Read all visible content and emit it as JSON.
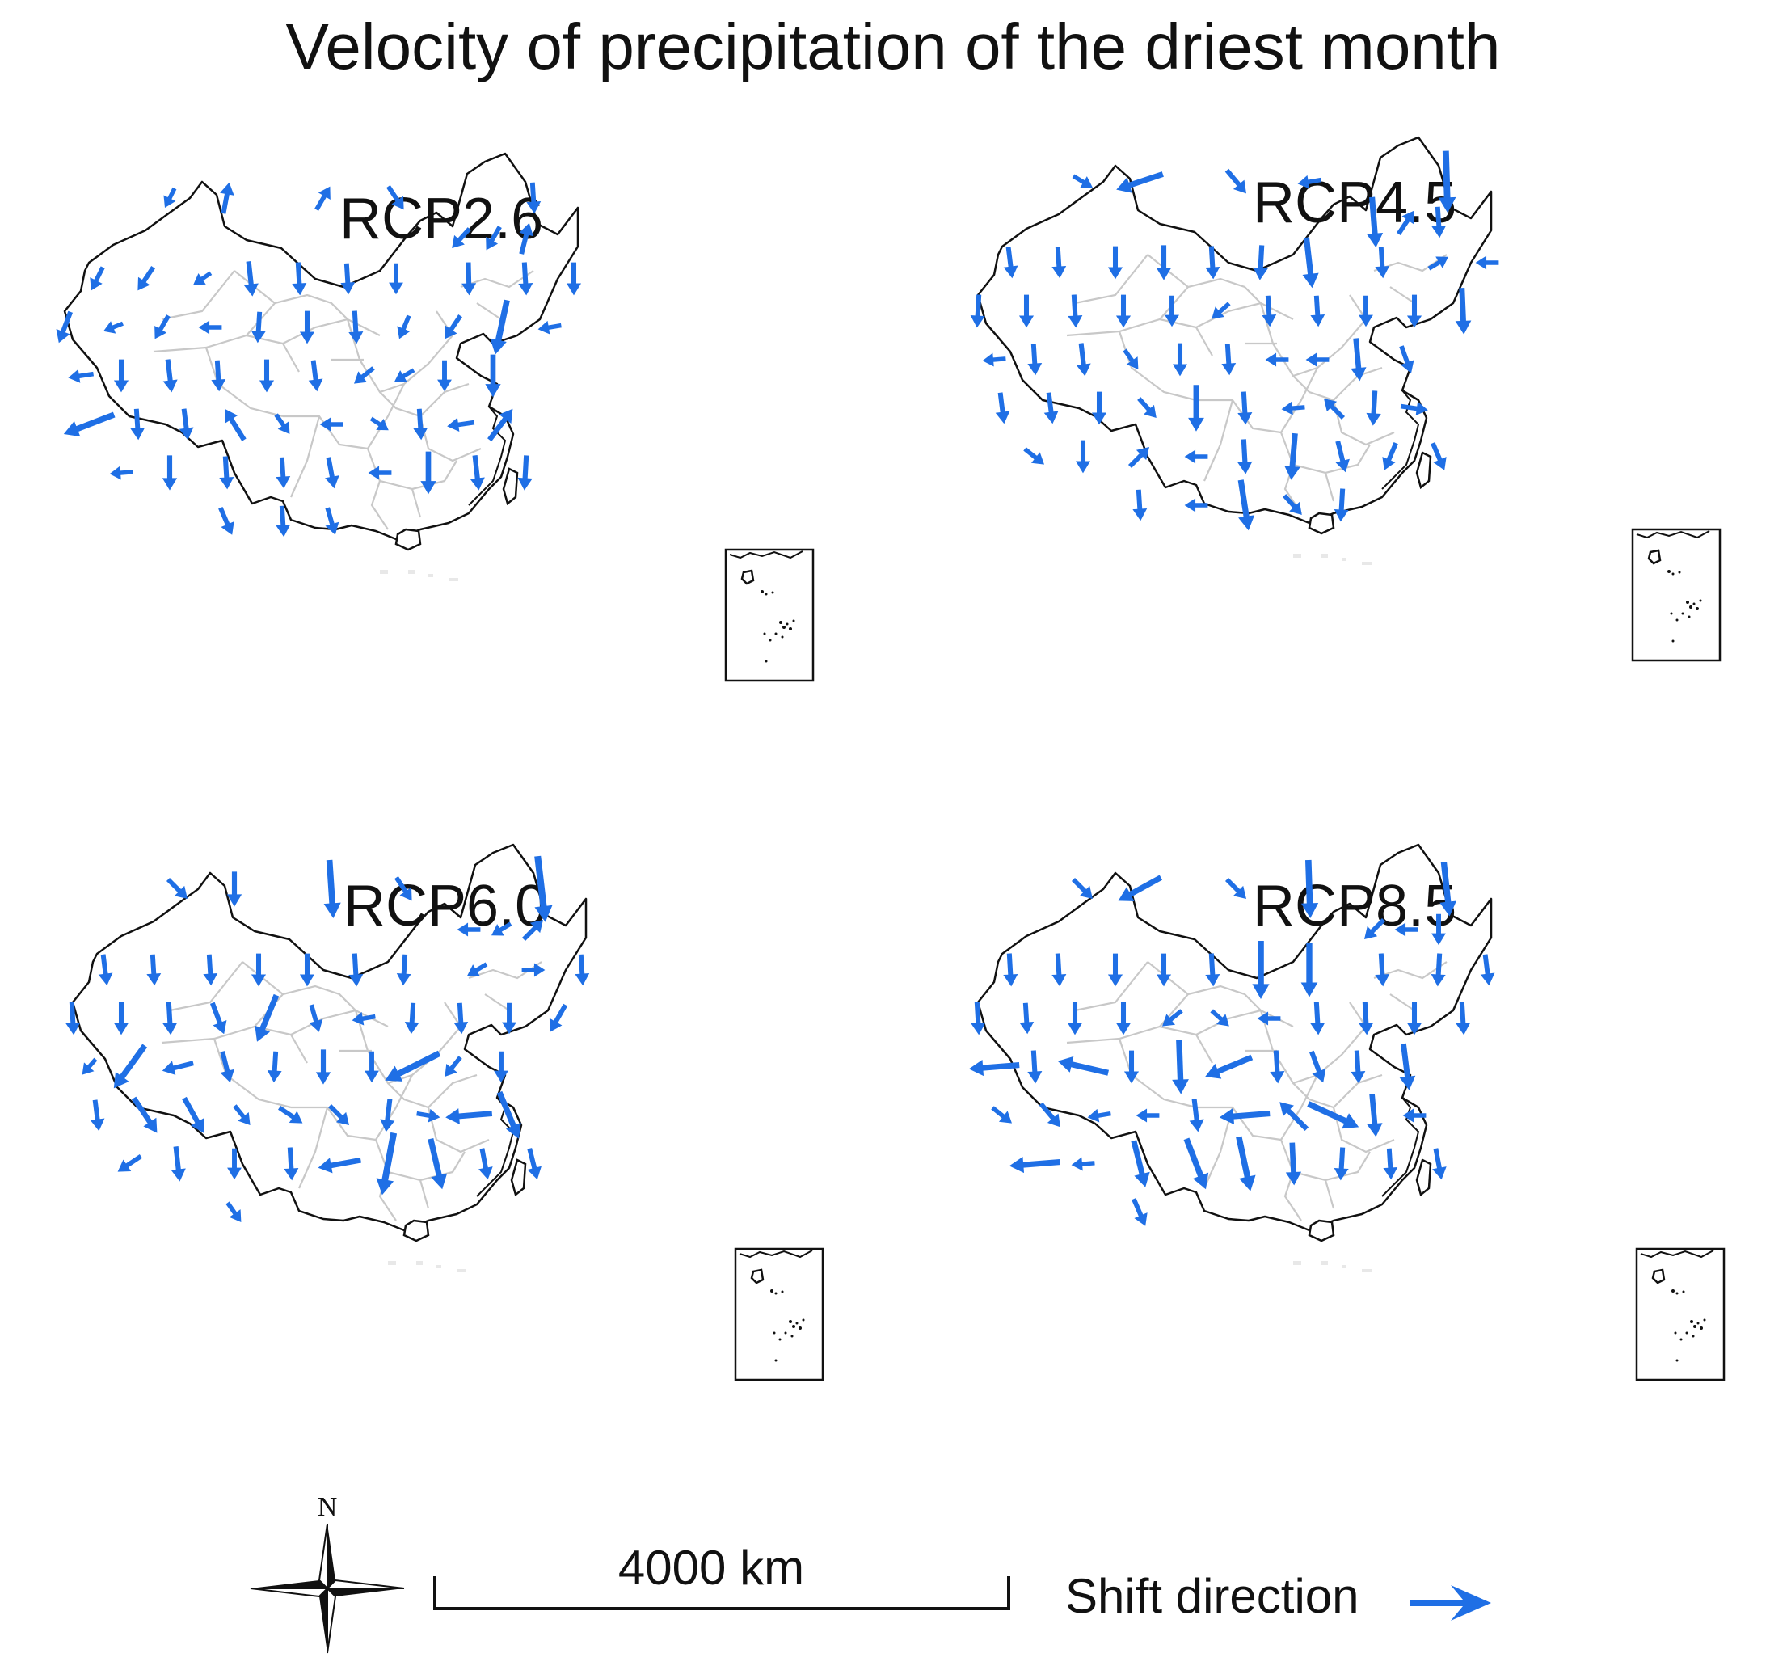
{
  "title": "Velocity of precipitation of the driest month",
  "arrow_color": "#1f6fe5",
  "panels": [
    {
      "label": "RCP2.6",
      "arrows": [
        [
          -0.25,
          0.5
        ],
        [
          0.15,
          -0.8
        ],
        [
          0.35,
          -0.6
        ],
        [
          0.4,
          0.6
        ],
        [
          0.05,
          0.8
        ],
        [
          -0.45,
          0.5
        ],
        [
          -0.35,
          0.6
        ],
        [
          0.2,
          -0.8
        ],
        [
          -0.3,
          0.6
        ],
        [
          -0.4,
          0.6
        ],
        [
          -0.45,
          0.3
        ],
        [
          0.1,
          0.9
        ],
        [
          0.05,
          0.85
        ],
        [
          0.05,
          0.8
        ],
        [
          0,
          0.8
        ],
        [
          0.02,
          0.85
        ],
        [
          0.05,
          0.85
        ],
        [
          0,
          0.85
        ],
        [
          -0.3,
          0.8
        ],
        [
          -0.5,
          0.2
        ],
        [
          -0.35,
          0.6
        ],
        [
          -0.6,
          0
        ],
        [
          -0.05,
          0.8
        ],
        [
          0,
          0.85
        ],
        [
          0.05,
          0.85
        ],
        [
          -0.25,
          0.6
        ],
        [
          -0.4,
          0.6
        ],
        [
          -0.3,
          1.4
        ],
        [
          -0.6,
          0.1
        ],
        [
          -0.65,
          0.1
        ],
        [
          0,
          0.85
        ],
        [
          0.1,
          0.85
        ],
        [
          0.05,
          0.8
        ],
        [
          0,
          0.85
        ],
        [
          0.1,
          0.8
        ],
        [
          -0.5,
          0.4
        ],
        [
          -0.5,
          0.3
        ],
        [
          0,
          0.8
        ],
        [
          0,
          1.1
        ],
        [
          -1.3,
          0.5
        ],
        [
          0.05,
          0.8
        ],
        [
          0.1,
          0.8
        ],
        [
          -0.5,
          -0.8
        ],
        [
          0.35,
          0.5
        ],
        [
          -0.6,
          0
        ],
        [
          0.45,
          0.3
        ],
        [
          0.05,
          0.8
        ],
        [
          -0.7,
          0.1
        ],
        [
          0.6,
          -0.8
        ],
        [
          -0.6,
          0.05
        ],
        [
          0,
          0.9
        ],
        [
          0.05,
          0.85
        ],
        [
          0.05,
          0.8
        ],
        [
          0.15,
          0.8
        ],
        [
          -0.6,
          0
        ],
        [
          0,
          1.1
        ],
        [
          0.1,
          0.9
        ],
        [
          -0.05,
          0.9
        ],
        [
          0.3,
          0.7
        ],
        [
          0.05,
          0.8
        ],
        [
          0.2,
          0.7
        ]
      ]
    },
    {
      "label": "RCP4.5",
      "arrows": [
        [
          0.5,
          0.3
        ],
        [
          -1.2,
          0.4
        ],
        [
          0.5,
          0.6
        ],
        [
          -0.6,
          0.1
        ],
        [
          0.05,
          1.6
        ],
        [
          0.1,
          1.3
        ],
        [
          0.4,
          -0.6
        ],
        [
          0.05,
          0.8
        ],
        [
          0.1,
          0.8
        ],
        [
          0.05,
          0.8
        ],
        [
          0,
          0.85
        ],
        [
          0,
          0.9
        ],
        [
          0.05,
          0.85
        ],
        [
          -0.05,
          0.9
        ],
        [
          0.15,
          1.3
        ],
        [
          0.05,
          0.8
        ],
        [
          0.5,
          -0.3
        ],
        [
          -0.6,
          0
        ],
        [
          -0.05,
          0.85
        ],
        [
          0,
          0.85
        ],
        [
          0.05,
          0.85
        ],
        [
          0,
          0.85
        ],
        [
          0,
          0.8
        ],
        [
          -0.45,
          0.4
        ],
        [
          0.05,
          0.8
        ],
        [
          0.05,
          0.8
        ],
        [
          0,
          0.8
        ],
        [
          0,
          0.85
        ],
        [
          0.05,
          1.2
        ],
        [
          -0.6,
          0.05
        ],
        [
          0.05,
          0.8
        ],
        [
          0.1,
          0.85
        ],
        [
          0.35,
          0.5
        ],
        [
          0,
          0.85
        ],
        [
          0.05,
          0.8
        ],
        [
          -0.6,
          0
        ],
        [
          -0.6,
          0
        ],
        [
          0.1,
          1.1
        ],
        [
          0.25,
          0.7
        ],
        [
          0.1,
          0.8
        ],
        [
          0.1,
          0.8
        ],
        [
          0,
          0.85
        ],
        [
          0.45,
          0.5
        ],
        [
          0,
          1.2
        ],
        [
          0.05,
          0.85
        ],
        [
          -0.6,
          0.05
        ],
        [
          -0.5,
          -0.5
        ],
        [
          -0.05,
          0.9
        ],
        [
          0.7,
          0.1
        ],
        [
          0.5,
          0.4
        ],
        [
          0,
          0.85
        ],
        [
          0.5,
          -0.5
        ],
        [
          -0.6,
          0
        ],
        [
          0.05,
          0.9
        ],
        [
          -0.1,
          1.2
        ],
        [
          0.2,
          0.8
        ],
        [
          -0.3,
          0.7
        ],
        [
          0.3,
          0.7
        ],
        [
          0.05,
          0.8
        ],
        [
          -0.6,
          0
        ],
        [
          0.2,
          1.3
        ],
        [
          0.45,
          0.5
        ],
        [
          -0.05,
          0.85
        ]
      ]
    },
    {
      "label": "RCP6.0",
      "arrows": [
        [
          0.5,
          0.5
        ],
        [
          0,
          0.9
        ],
        [
          0.1,
          1.5
        ],
        [
          0.4,
          0.6
        ],
        [
          0.2,
          1.7
        ],
        [
          -0.6,
          0
        ],
        [
          -0.5,
          0.3
        ],
        [
          0.5,
          -0.5
        ],
        [
          0.1,
          0.8
        ],
        [
          0.05,
          0.8
        ],
        [
          0.05,
          0.8
        ],
        [
          0,
          0.85
        ],
        [
          0,
          0.85
        ],
        [
          0.05,
          0.85
        ],
        [
          -0.05,
          0.8
        ],
        [
          -0.5,
          0.3
        ],
        [
          0.6,
          0
        ],
        [
          0.05,
          0.8
        ],
        [
          0.05,
          0.85
        ],
        [
          0,
          0.85
        ],
        [
          0.05,
          0.85
        ],
        [
          0.3,
          0.8
        ],
        [
          -0.5,
          1.2
        ],
        [
          0.2,
          0.7
        ],
        [
          -0.6,
          0.1
        ],
        [
          -0.05,
          0.8
        ],
        [
          0.05,
          0.8
        ],
        [
          0,
          0.8
        ],
        [
          -0.4,
          0.7
        ],
        [
          -0.35,
          0.4
        ],
        [
          -0.8,
          1.1
        ],
        [
          -0.8,
          0.2
        ],
        [
          0.2,
          0.8
        ],
        [
          -0.05,
          0.8
        ],
        [
          0,
          0.9
        ],
        [
          0,
          0.8
        ],
        [
          -1.4,
          0.7
        ],
        [
          -0.4,
          0.5
        ],
        [
          0,
          0.8
        ],
        [
          0.1,
          0.8
        ],
        [
          0.6,
          0.9
        ],
        [
          0.5,
          0.9
        ],
        [
          0.4,
          0.5
        ],
        [
          0.6,
          0.4
        ],
        [
          0.5,
          0.5
        ],
        [
          -0.1,
          0.85
        ],
        [
          0.6,
          0.1
        ],
        [
          -1.2,
          0.1
        ],
        [
          0.5,
          1.2
        ],
        [
          -0.6,
          0.4
        ],
        [
          0.1,
          0.9
        ],
        [
          0,
          0.8
        ],
        [
          0.05,
          0.85
        ],
        [
          -1.1,
          0.2
        ],
        [
          -0.3,
          1.6
        ],
        [
          0.3,
          1.3
        ],
        [
          0.15,
          0.8
        ],
        [
          0.2,
          0.8
        ],
        [
          0.35,
          0.5
        ]
      ]
    },
    {
      "label": "RCP8.5",
      "arrows": [
        [
          0.5,
          0.5
        ],
        [
          -1.1,
          0.6
        ],
        [
          0.5,
          0.5
        ],
        [
          0.05,
          1.5
        ],
        [
          0.15,
          1.4
        ],
        [
          -0.5,
          0.5
        ],
        [
          -0.6,
          0
        ],
        [
          0,
          0.8
        ],
        [
          0.05,
          0.85
        ],
        [
          0.05,
          0.85
        ],
        [
          0,
          0.85
        ],
        [
          0,
          0.85
        ],
        [
          0.05,
          0.85
        ],
        [
          0,
          1.5
        ],
        [
          0,
          1.4
        ],
        [
          0.05,
          0.85
        ],
        [
          -0.05,
          0.85
        ],
        [
          0.1,
          0.8
        ],
        [
          0.05,
          0.85
        ],
        [
          0.05,
          0.8
        ],
        [
          0,
          0.85
        ],
        [
          0,
          0.85
        ],
        [
          -0.5,
          0.4
        ],
        [
          0.45,
          0.4
        ],
        [
          -0.6,
          0
        ],
        [
          0.05,
          0.85
        ],
        [
          0.05,
          0.85
        ],
        [
          0,
          0.85
        ],
        [
          0.05,
          0.85
        ],
        [
          -1.3,
          0.1
        ],
        [
          0.05,
          0.85
        ],
        [
          -1.3,
          -0.3
        ],
        [
          0,
          0.85
        ],
        [
          0.05,
          1.4
        ],
        [
          -1.2,
          0.5
        ],
        [
          0.05,
          0.85
        ],
        [
          0.3,
          0.8
        ],
        [
          0.05,
          0.85
        ],
        [
          0.15,
          1.2
        ],
        [
          0.5,
          0.4
        ],
        [
          0.5,
          0.6
        ],
        [
          -0.6,
          0.1
        ],
        [
          -0.6,
          0
        ],
        [
          0.1,
          0.85
        ],
        [
          -1.3,
          0.1
        ],
        [
          -0.7,
          -0.7
        ],
        [
          1.3,
          0.6
        ],
        [
          0.1,
          1.1
        ],
        [
          -0.6,
          0
        ],
        [
          -1.3,
          0.1
        ],
        [
          -0.6,
          0.05
        ],
        [
          0.3,
          1.2
        ],
        [
          0.5,
          1.3
        ],
        [
          0.3,
          1.4
        ],
        [
          0.05,
          1.1
        ],
        [
          -0.05,
          0.85
        ],
        [
          0.05,
          0.8
        ],
        [
          0.15,
          0.8
        ],
        [
          0.3,
          0.7
        ]
      ]
    }
  ],
  "scale_bar": {
    "label": "4000 km",
    "distance_km": 4000
  },
  "compass": {
    "label": "N",
    "icon": "north-arrow-compass-icon"
  },
  "legend": {
    "label": "Shift direction",
    "icon": "shift-direction-arrow-icon"
  }
}
